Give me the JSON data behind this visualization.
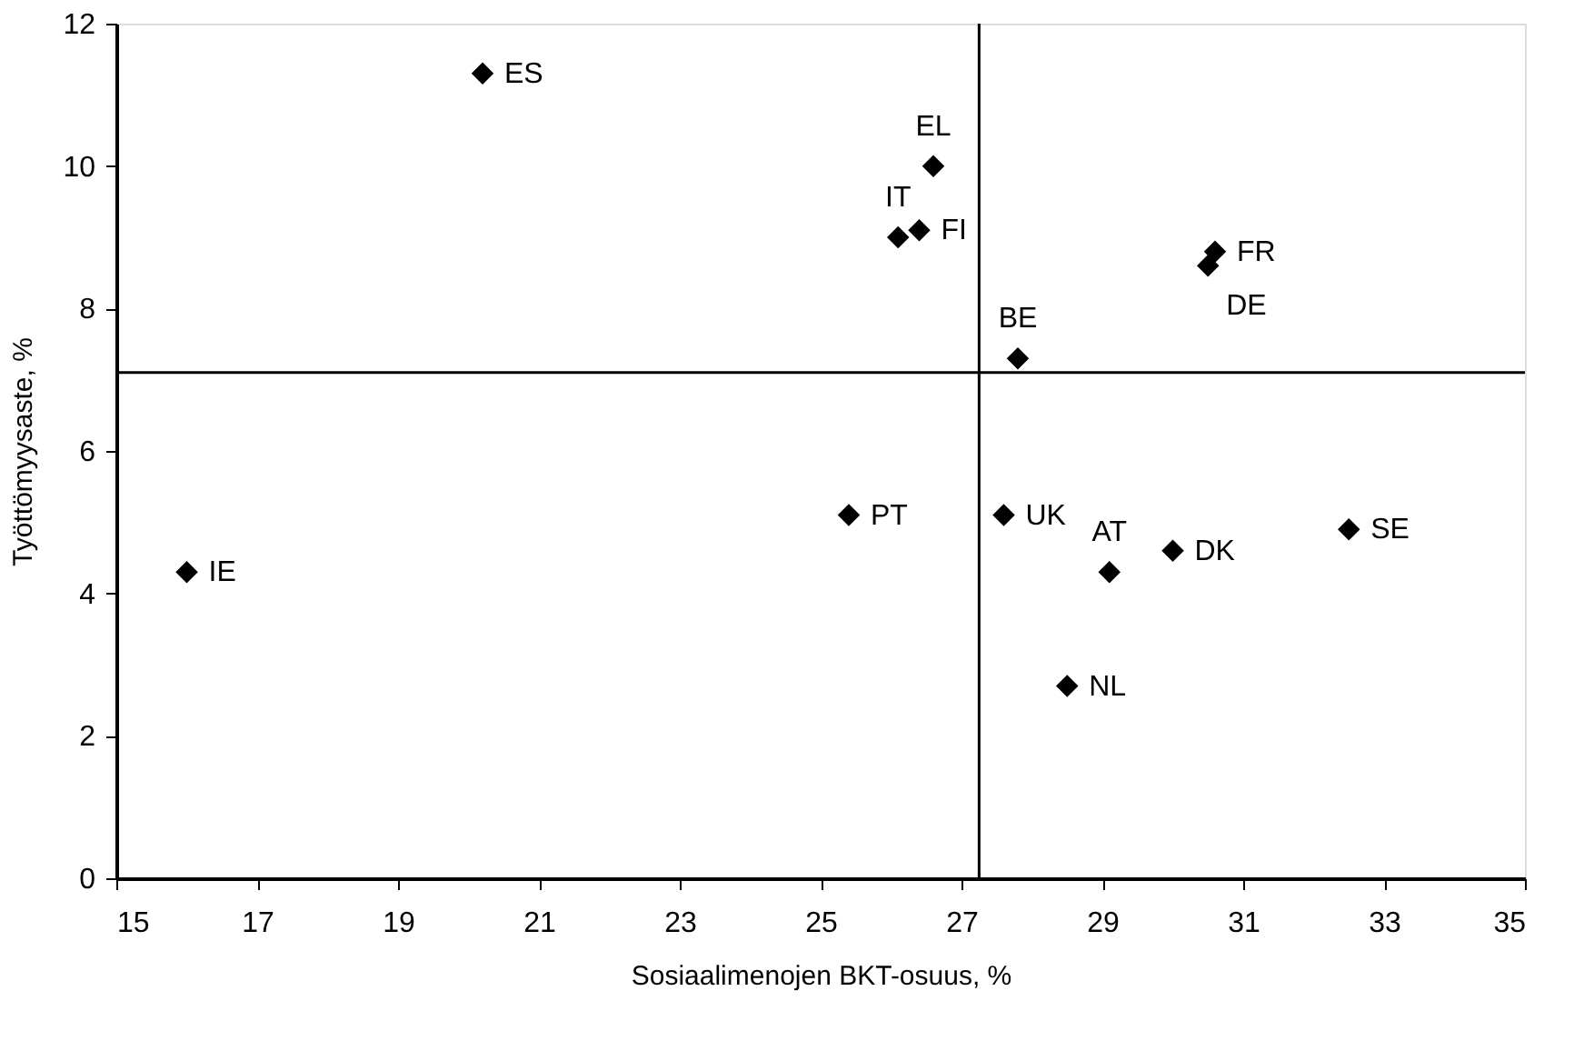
{
  "chart_data": {
    "type": "scatter",
    "xlabel": "Sosiaalimenojen BKT-osuus, %",
    "ylabel": "Työttömyysaste, %",
    "x": [
      20.2,
      26.6,
      26.4,
      26.1,
      30.6,
      30.5,
      27.8,
      25.4,
      27.6,
      29.1,
      30.0,
      32.5,
      28.5,
      16.0
    ],
    "series": [
      {
        "color": "#000000",
        "values": [
          11.3,
          10.0,
          9.1,
          9.0,
          8.8,
          8.6,
          7.3,
          5.1,
          5.1,
          4.3,
          4.6,
          4.9,
          2.7,
          4.3
        ]
      }
    ],
    "annotations": [
      {
        "text": "ES",
        "x": 20.2,
        "y": 11.3
      },
      {
        "text": "EL",
        "x": 26.6,
        "y": 10.0
      },
      {
        "text": "FI",
        "x": 26.4,
        "y": 9.1
      },
      {
        "text": "IT",
        "x": 26.1,
        "y": 9.0
      },
      {
        "text": "FR",
        "x": 30.6,
        "y": 8.8
      },
      {
        "text": "DE",
        "x": 30.5,
        "y": 8.6
      },
      {
        "text": "BE",
        "x": 27.8,
        "y": 7.3
      },
      {
        "text": "PT",
        "x": 25.4,
        "y": 5.1
      },
      {
        "text": "UK",
        "x": 27.6,
        "y": 5.1
      },
      {
        "text": "AT",
        "x": 29.1,
        "y": 4.3
      },
      {
        "text": "DK",
        "x": 30.0,
        "y": 4.6
      },
      {
        "text": "SE",
        "x": 32.5,
        "y": 4.9
      },
      {
        "text": "NL",
        "x": 28.5,
        "y": 2.7
      },
      {
        "text": "IE",
        "x": 16.0,
        "y": 4.3
      }
    ],
    "ref_lines": [
      {
        "axis": "x",
        "value": 27.25,
        "color": "#000000"
      },
      {
        "axis": "y",
        "value": 7.1,
        "color": "#000000"
      }
    ],
    "xlim": [
      15,
      35
    ],
    "xticks": [
      15,
      17,
      19,
      21,
      23,
      25,
      27,
      29,
      31,
      33,
      35
    ],
    "ylim": [
      0,
      12
    ],
    "yticks": [
      0,
      2,
      4,
      6,
      8,
      10,
      12
    ],
    "grid": false,
    "marker": "diamond"
  }
}
